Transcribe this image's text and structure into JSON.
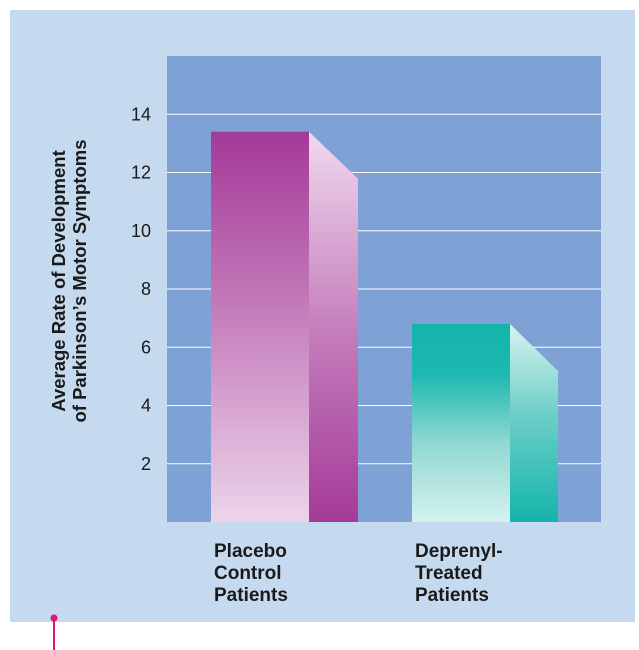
{
  "chart_data": {
    "type": "bar",
    "title": "",
    "ylabel_lines": [
      "Average Rate of Development",
      "of Parkinson’s Motor Symptoms"
    ],
    "xlabel": "",
    "categories": [
      {
        "lines": [
          "Placebo",
          "Control",
          "Patients"
        ]
      },
      {
        "lines": [
          "Deprenyl-",
          "Treated",
          "Patients"
        ]
      }
    ],
    "values": [
      13.4,
      6.8
    ],
    "ylim": [
      0,
      16
    ],
    "yticks": [
      "2",
      "4",
      "6",
      "8",
      "10",
      "12",
      "14"
    ],
    "grid": true,
    "colors": {
      "panel_background": "#c5d9ef",
      "plot_background": "#7fa2d6",
      "gridline": "#ffffff",
      "bar1_front_top": "#a43a98",
      "bar1_front_bottom": "#ecd4ea",
      "bar2_front_top": "#14b4ac",
      "bar2_front_bottom": "#d6f2ee",
      "marker": "#e0157a"
    }
  }
}
